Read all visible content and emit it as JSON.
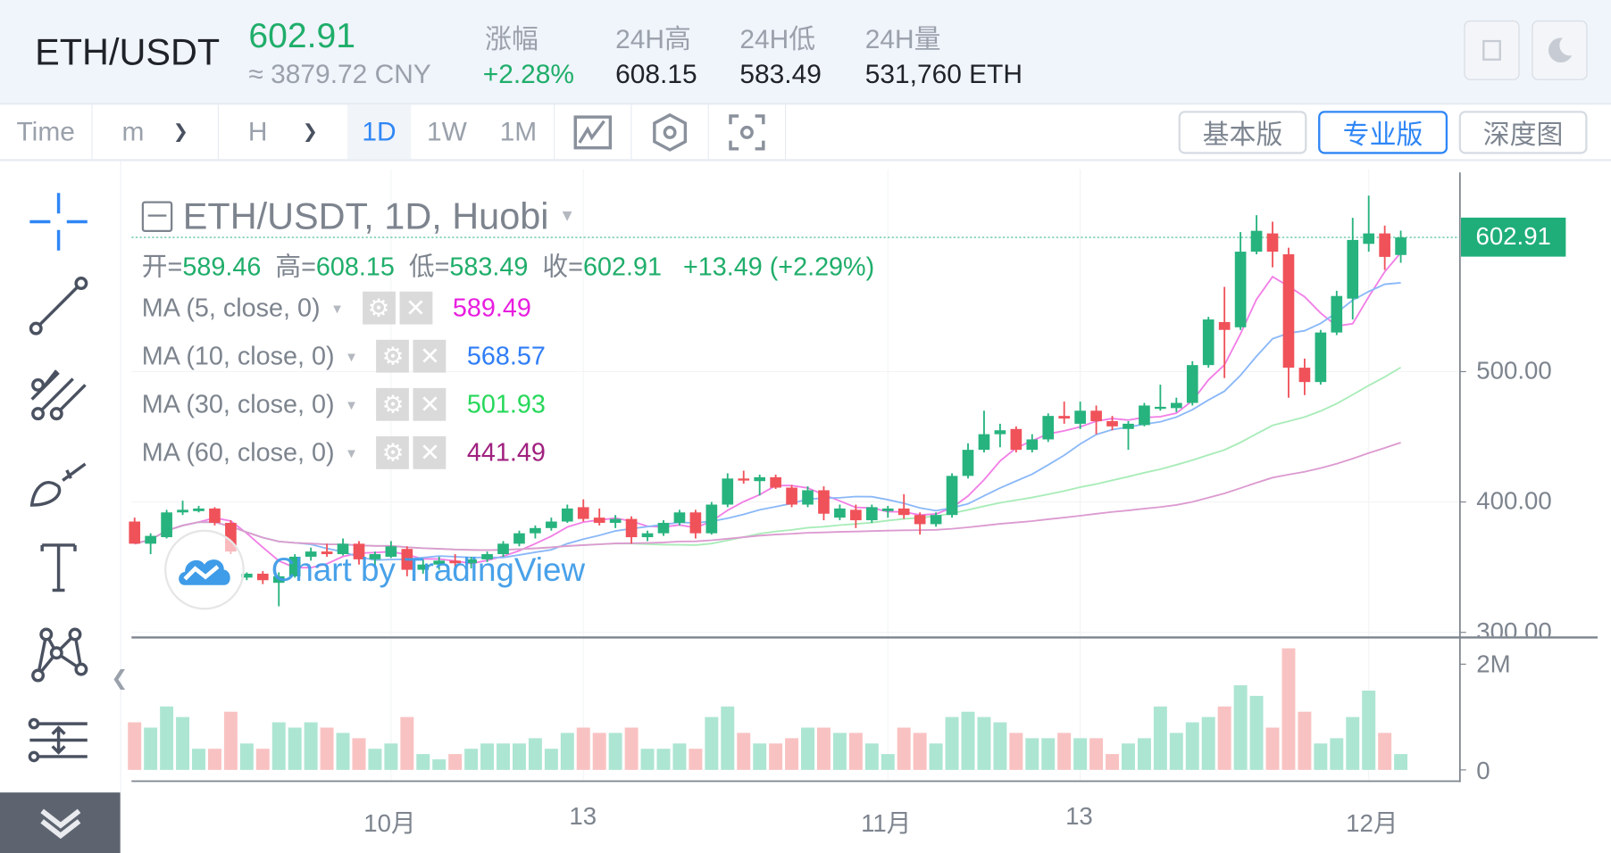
{
  "header": {
    "symbol": "ETH/USDT",
    "last_price": "602.91",
    "cny_price": "≈ 3879.72 CNY",
    "stats": [
      {
        "label": "涨幅",
        "value": "+2.28%"
      },
      {
        "label": "24H高",
        "value": "608.15"
      },
      {
        "label": "24H低",
        "value": "583.49"
      },
      {
        "label": "24H量",
        "value": "531,760 ETH"
      }
    ],
    "buttons": [
      "fullscreen-icon",
      "moon-icon"
    ]
  },
  "toolbar": {
    "time_label": "Time",
    "minute_label": "m",
    "hour_label": "H",
    "intervals": [
      "1D",
      "1W",
      "1M"
    ],
    "active_interval": "1D",
    "icons": [
      "indicator-icon",
      "settings-icon",
      "screenshot-icon"
    ],
    "views": [
      "基本版",
      "专业版",
      "深度图"
    ],
    "active_view": "专业版"
  },
  "sidebar": {
    "tools": [
      "crosshair-icon",
      "trend-line-icon",
      "pitchfork-icon",
      "brush-icon",
      "text-icon",
      "pattern-icon",
      "measure-icon"
    ],
    "collapse": "collapse-icon"
  },
  "legend": {
    "title": "ETH/USDT, 1D, Huobi",
    "open_label": "开=",
    "open": "589.46",
    "high_label": "高=",
    "high": "608.15",
    "low_label": "低=",
    "low": "583.49",
    "close_label": "收=",
    "close": "602.91",
    "change": "+13.49 (+2.29%)",
    "mas": [
      {
        "label": "MA (5, close, 0)",
        "value": "589.49",
        "color": "#e81ee0"
      },
      {
        "label": "MA (10, close, 0)",
        "value": "568.57",
        "color": "#2f7df6"
      },
      {
        "label": "MA (30, close, 0)",
        "value": "501.93",
        "color": "#27d85a"
      },
      {
        "label": "MA (60, close, 0)",
        "value": "441.49",
        "color": "#a0207f"
      }
    ]
  },
  "watermark": "Chart by TradingView",
  "price_tag": "602.91",
  "price_axis": [
    "500.00",
    "400.00",
    "300.00"
  ],
  "volume_axis": [
    "2M",
    "0"
  ],
  "time_axis": [
    "10月",
    "13",
    "11月",
    "13",
    "12月"
  ],
  "chart_data": {
    "type": "candlestick",
    "ylim": [
      290,
      645
    ],
    "price_ticks": [
      300,
      400,
      500
    ],
    "last": 602.91,
    "volume_ylim": [
      0,
      2.4
    ],
    "time_ticks": [
      {
        "label": "10月",
        "index": 16
      },
      {
        "label": "13",
        "index": 28
      },
      {
        "label": "11月",
        "index": 47
      },
      {
        "label": "13",
        "index": 59
      },
      {
        "label": "12月",
        "index": 77
      }
    ],
    "ohlc": [
      [
        385,
        388,
        368,
        368
      ],
      [
        368,
        376,
        360,
        374
      ],
      [
        373,
        394,
        372,
        392
      ],
      [
        392,
        401,
        390,
        394
      ],
      [
        393,
        397,
        392,
        395
      ],
      [
        395,
        396,
        382,
        384
      ],
      [
        384,
        386,
        360,
        362
      ],
      [
        342,
        346,
        340,
        345
      ],
      [
        345,
        347,
        337,
        340
      ],
      [
        338,
        346,
        320,
        343
      ],
      [
        343,
        360,
        342,
        358
      ],
      [
        358,
        365,
        355,
        362
      ],
      [
        362,
        368,
        358,
        360
      ],
      [
        360,
        372,
        359,
        368
      ],
      [
        368,
        370,
        352,
        356
      ],
      [
        356,
        362,
        350,
        360
      ],
      [
        358,
        370,
        357,
        366
      ],
      [
        364,
        366,
        343,
        348
      ],
      [
        348,
        356,
        345,
        352
      ],
      [
        352,
        358,
        348,
        355
      ],
      [
        355,
        360,
        350,
        353
      ],
      [
        353,
        358,
        349,
        356
      ],
      [
        356,
        362,
        354,
        360
      ],
      [
        360,
        370,
        358,
        368
      ],
      [
        368,
        378,
        366,
        376
      ],
      [
        376,
        382,
        372,
        380
      ],
      [
        380,
        388,
        378,
        385
      ],
      [
        385,
        398,
        384,
        395
      ],
      [
        396,
        402,
        385,
        387
      ],
      [
        388,
        395,
        382,
        384
      ],
      [
        384,
        390,
        380,
        387
      ],
      [
        387,
        389,
        368,
        373
      ],
      [
        373,
        378,
        370,
        376
      ],
      [
        376,
        386,
        374,
        384
      ],
      [
        384,
        394,
        382,
        392
      ],
      [
        392,
        394,
        372,
        376
      ],
      [
        376,
        400,
        375,
        398
      ],
      [
        398,
        422,
        396,
        418
      ],
      [
        418,
        424,
        414,
        417
      ],
      [
        416,
        421,
        405,
        419
      ],
      [
        419,
        421,
        410,
        411
      ],
      [
        411,
        413,
        396,
        398
      ],
      [
        398,
        412,
        396,
        409
      ],
      [
        409,
        412,
        386,
        391
      ],
      [
        388,
        398,
        386,
        395
      ],
      [
        394,
        398,
        380,
        386
      ],
      [
        386,
        398,
        384,
        396
      ],
      [
        393,
        397,
        388,
        395
      ],
      [
        395,
        406,
        387,
        390
      ],
      [
        390,
        392,
        375,
        383
      ],
      [
        383,
        392,
        381,
        390
      ],
      [
        390,
        422,
        388,
        420
      ],
      [
        420,
        445,
        418,
        440
      ],
      [
        440,
        470,
        438,
        452
      ],
      [
        452,
        460,
        442,
        455
      ],
      [
        456,
        458,
        438,
        440
      ],
      [
        440,
        452,
        438,
        448
      ],
      [
        448,
        468,
        446,
        466
      ],
      [
        466,
        477,
        460,
        464
      ],
      [
        460,
        477,
        456,
        470
      ],
      [
        470,
        474,
        452,
        462
      ],
      [
        462,
        466,
        455,
        458
      ],
      [
        456,
        462,
        440,
        460
      ],
      [
        459,
        476,
        458,
        474
      ],
      [
        472,
        490,
        470,
        473
      ],
      [
        472,
        480,
        469,
        476
      ],
      [
        476,
        508,
        474,
        505
      ],
      [
        505,
        542,
        503,
        540
      ],
      [
        538,
        565,
        495,
        532
      ],
      [
        534,
        607,
        532,
        592
      ],
      [
        592,
        620,
        590,
        608
      ],
      [
        606,
        615,
        580,
        592
      ],
      [
        590,
        595,
        480,
        503
      ],
      [
        503,
        510,
        482,
        492
      ],
      [
        492,
        532,
        490,
        530
      ],
      [
        530,
        562,
        528,
        558
      ],
      [
        556,
        618,
        540,
        601
      ],
      [
        598,
        635,
        592,
        606
      ],
      [
        606,
        612,
        578,
        588
      ],
      [
        589.46,
        608.15,
        583.49,
        602.91
      ]
    ],
    "volume_millions": [
      0.9,
      0.8,
      1.2,
      1.0,
      0.4,
      0.4,
      1.1,
      0.5,
      0.4,
      0.9,
      0.8,
      0.9,
      0.8,
      0.7,
      0.6,
      0.4,
      0.5,
      1.0,
      0.3,
      0.2,
      0.3,
      0.4,
      0.5,
      0.5,
      0.5,
      0.6,
      0.4,
      0.7,
      0.8,
      0.7,
      0.7,
      0.8,
      0.4,
      0.4,
      0.5,
      0.4,
      1.0,
      1.2,
      0.7,
      0.5,
      0.5,
      0.6,
      0.8,
      0.8,
      0.7,
      0.7,
      0.5,
      0.3,
      0.8,
      0.7,
      0.5,
      1.0,
      1.1,
      1.0,
      0.9,
      0.7,
      0.6,
      0.6,
      0.7,
      0.6,
      0.6,
      0.3,
      0.5,
      0.6,
      1.2,
      0.7,
      0.9,
      1.0,
      1.2,
      1.6,
      1.4,
      0.8,
      2.3,
      1.1,
      0.5,
      0.6,
      1.0,
      1.5,
      0.7,
      0.3
    ],
    "ma_periods": [
      5,
      10,
      30,
      60
    ],
    "ma_line_colors": [
      "#f27ee6",
      "#8ab8f8",
      "#a8ecb8",
      "#dc9ad0"
    ],
    "up_color": "#27b37e",
    "down_color": "#f0525a",
    "vol_up_color": "#ade5d3",
    "vol_down_color": "#f9c2c2"
  }
}
